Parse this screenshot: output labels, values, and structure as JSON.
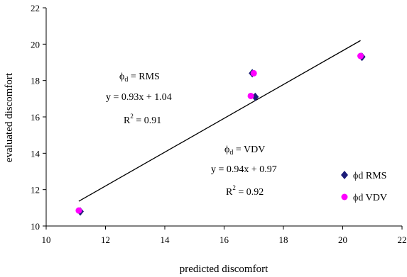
{
  "chart_data": {
    "type": "scatter",
    "xlabel": "predicted discomfort",
    "ylabel": "evaluated discomfort",
    "xlim": [
      10,
      22
    ],
    "ylim": [
      10,
      22
    ],
    "xticks": [
      10,
      12,
      14,
      16,
      18,
      20,
      22
    ],
    "yticks": [
      10,
      12,
      14,
      16,
      18,
      20,
      22
    ],
    "grid": false,
    "legend_position": "right",
    "series": [
      {
        "name_symbol": "ϕ",
        "name_sub": "d",
        "name_tail": " RMS",
        "marker": "diamond",
        "color": "#1c1c78",
        "points": [
          [
            11.15,
            10.8
          ],
          [
            16.95,
            18.4
          ],
          [
            17.05,
            17.1
          ],
          [
            20.65,
            19.3
          ]
        ]
      },
      {
        "name_symbol": "ϕ",
        "name_sub": "d",
        "name_tail": " VDV",
        "marker": "circle",
        "color": "#ff00ff",
        "points": [
          [
            11.1,
            10.85
          ],
          [
            17.0,
            18.4
          ],
          [
            16.9,
            17.15
          ],
          [
            20.6,
            19.35
          ]
        ]
      }
    ],
    "trendline": {
      "color": "#000000",
      "x_start": 11.1,
      "x_end": 20.6,
      "slope": 0.93,
      "intercept": 1.04
    },
    "annotations": {
      "rms": {
        "phi": "ϕ",
        "sub": "d",
        "tail": " = RMS",
        "equation": "y = 0.93x + 1.04",
        "r2_prefix": "R",
        "r2_sup": "2",
        "r2_tail": " = 0.91"
      },
      "vdv": {
        "phi": "ϕ",
        "sub": "d",
        "tail": " = VDV",
        "equation": "y = 0.94x + 0.97",
        "r2_prefix": "R",
        "r2_sup": "2",
        "r2_tail": " = 0.92"
      }
    }
  }
}
